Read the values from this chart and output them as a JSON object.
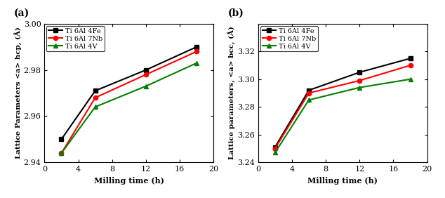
{
  "x": [
    2,
    6,
    12,
    18
  ],
  "panel_a": {
    "label": "(a)",
    "ylabel": "Lattice Parameters <a> hcp, (Å)",
    "xlabel": "Milling time (h)",
    "ylim": [
      2.94,
      3.0
    ],
    "yticks": [
      2.94,
      2.96,
      2.98,
      3.0
    ],
    "xlim": [
      0,
      20
    ],
    "xticks": [
      0,
      4,
      8,
      12,
      16,
      20
    ],
    "series": [
      {
        "label": "Ti 6Al 4Fe",
        "color": "black",
        "marker": "s",
        "data": [
          2.95,
          2.971,
          2.98,
          2.99
        ]
      },
      {
        "label": "Ti 6Al 7Nb",
        "color": "red",
        "marker": "o",
        "data": [
          2.944,
          2.968,
          2.978,
          2.988
        ]
      },
      {
        "label": "Ti 6Al 4V",
        "color": "green",
        "marker": "^",
        "data": [
          2.944,
          2.964,
          2.973,
          2.983
        ]
      }
    ]
  },
  "panel_b": {
    "label": "(b)",
    "ylabel": "Lattice parameters, <a> bcc, (Å)",
    "xlabel": "Milling time (h)",
    "ylim": [
      3.24,
      3.34
    ],
    "yticks": [
      3.24,
      3.26,
      3.28,
      3.3,
      3.32
    ],
    "xlim": [
      0,
      20
    ],
    "xticks": [
      0,
      4,
      8,
      12,
      16,
      20
    ],
    "series": [
      {
        "label": "Ti 6Al 4Fe",
        "color": "black",
        "marker": "s",
        "data": [
          3.251,
          3.292,
          3.305,
          3.315
        ]
      },
      {
        "label": "Ti 6Al 7Nb",
        "color": "red",
        "marker": "o",
        "data": [
          3.25,
          3.29,
          3.299,
          3.31
        ]
      },
      {
        "label": "Ti 6Al 4V",
        "color": "green",
        "marker": "^",
        "data": [
          3.247,
          3.285,
          3.294,
          3.3
        ]
      }
    ]
  }
}
